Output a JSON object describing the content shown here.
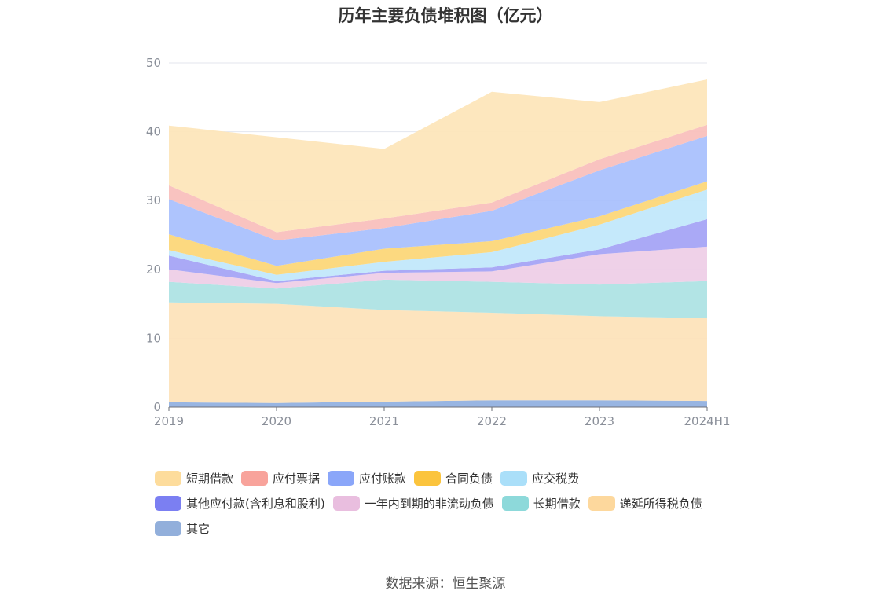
{
  "chart_data": {
    "type": "area",
    "stacked": true,
    "title": "历年主要负债堆积图（亿元）",
    "x": [
      "2019",
      "2020",
      "2021",
      "2022",
      "2023",
      "2024H1"
    ],
    "ylim": [
      0,
      50
    ],
    "yticks": [
      0,
      10,
      20,
      30,
      40,
      50
    ],
    "grid": true,
    "legend_position": "bottom",
    "series": [
      {
        "name": "其它",
        "color": "#8fafdf",
        "values": [
          0.7,
          0.6,
          0.8,
          1.0,
          1.0,
          0.9
        ]
      },
      {
        "name": "递延所得税负债",
        "color": "#fde2b8",
        "values": [
          14.5,
          14.4,
          13.3,
          12.7,
          12.2,
          12.0
        ]
      },
      {
        "name": "长期借款",
        "color": "#abe2e3",
        "values": [
          3.0,
          2.2,
          4.4,
          4.5,
          4.6,
          5.4
        ]
      },
      {
        "name": "一年内到期的非流动负债",
        "color": "#eecde6",
        "values": [
          1.8,
          0.8,
          1.0,
          1.5,
          4.4,
          5.0
        ]
      },
      {
        "name": "其他应付款(含利息和股利)",
        "color": "#a3a2f5",
        "values": [
          2.0,
          0.3,
          0.3,
          0.6,
          0.7,
          4.0
        ]
      },
      {
        "name": "应交税费",
        "color": "#c0e7fb",
        "values": [
          0.8,
          0.9,
          1.3,
          2.2,
          3.6,
          4.3
        ]
      },
      {
        "name": "合同负债",
        "color": "#fcd675",
        "values": [
          2.3,
          1.3,
          1.9,
          1.6,
          1.2,
          1.2
        ]
      },
      {
        "name": "应付账款",
        "color": "#a7bffd",
        "values": [
          5.1,
          3.7,
          3.0,
          4.4,
          6.7,
          6.6
        ]
      },
      {
        "name": "应付票据",
        "color": "#f9bebb",
        "values": [
          2.0,
          1.2,
          1.4,
          1.2,
          1.6,
          1.6
        ]
      },
      {
        "name": "短期借款",
        "color": "#fde5b8",
        "values": [
          8.7,
          13.8,
          10.1,
          16.1,
          8.3,
          6.6
        ]
      }
    ]
  },
  "legend": [
    {
      "name": "短期借款",
      "color": "#fddc9c"
    },
    {
      "name": "应付票据",
      "color": "#f8a39b"
    },
    {
      "name": "应付账款",
      "color": "#8aa6f9"
    },
    {
      "name": "合同负债",
      "color": "#fbc43d"
    },
    {
      "name": "应交税费",
      "color": "#aadff9"
    },
    {
      "name": "其他应付款(含利息和股利)",
      "color": "#7b7ff2"
    },
    {
      "name": "一年内到期的非流动负债",
      "color": "#e9bedf"
    },
    {
      "name": "长期借款",
      "color": "#8dd9da"
    },
    {
      "name": "递延所得税负债",
      "color": "#fdd89d"
    },
    {
      "name": "其它",
      "color": "#92afdb"
    }
  ],
  "source": "数据来源：恒生聚源"
}
